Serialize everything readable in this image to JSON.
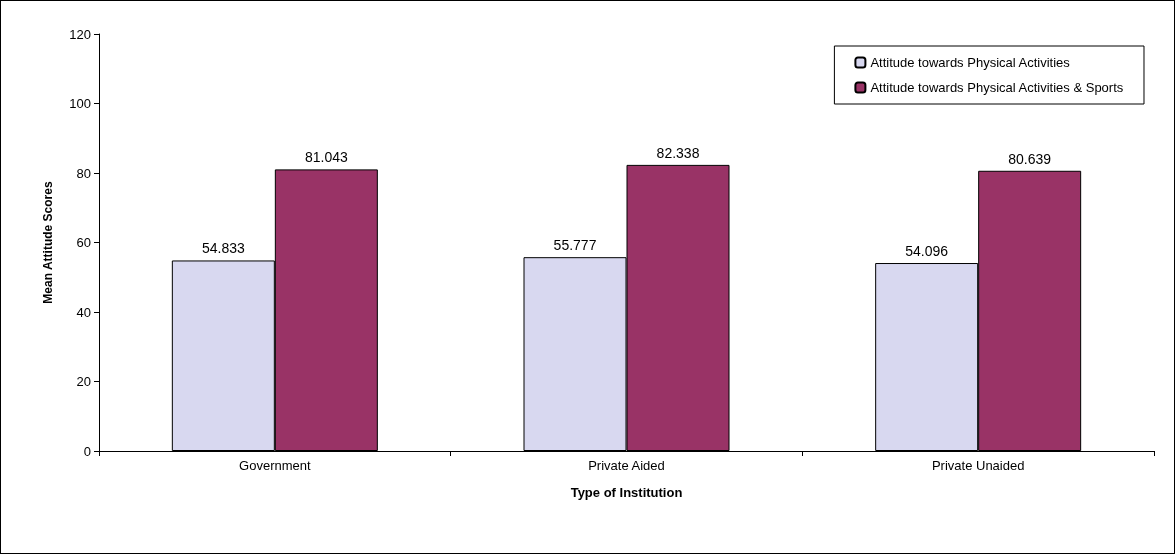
{
  "chart_data": {
    "type": "bar",
    "xlabel": "Type of Institution",
    "ylabel": "Mean Attitude Scores",
    "categories": [
      "Government",
      "Private Aided",
      "Private Unaided"
    ],
    "series": [
      {
        "name": "Attitude towards Physical Activities",
        "color": "#d8d8f0",
        "values": [
          54.833,
          55.777,
          54.096
        ]
      },
      {
        "name": "Attitude towards Physical Activities & Sports",
        "color": "#993366",
        "values": [
          81.043,
          82.338,
          80.639
        ]
      }
    ],
    "ylim": [
      0,
      120
    ],
    "yticks": [
      0,
      20,
      40,
      60,
      80,
      100,
      120
    ],
    "grid": false,
    "legend": "top right",
    "data_labels": true
  }
}
